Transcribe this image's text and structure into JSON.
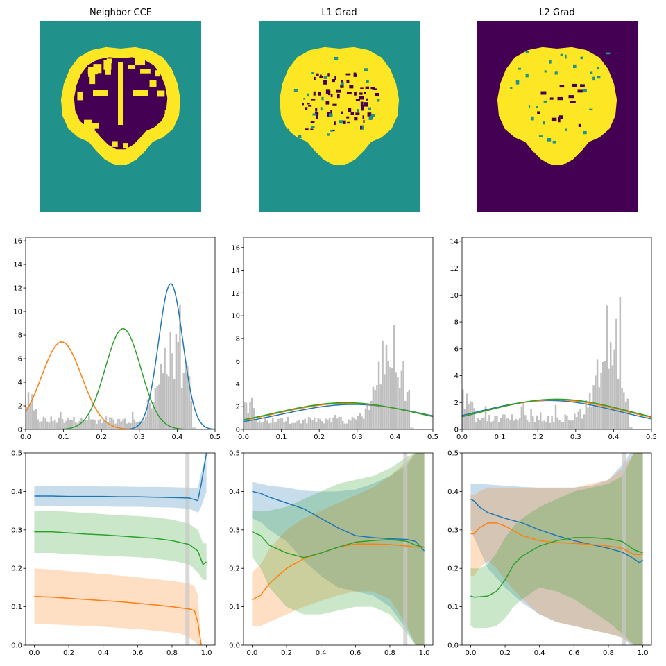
{
  "chart_data": [
    {
      "type": "image",
      "title": "Neighbor CCE",
      "colormap": {
        "background": "#21918c",
        "low": "#440154",
        "high": "#fde725"
      }
    },
    {
      "type": "image",
      "title": "L1 Grad",
      "colormap": {
        "background": "#21918c",
        "low": "#440154",
        "high": "#fde725"
      }
    },
    {
      "type": "image",
      "title": "L2 Grad",
      "colormap": {
        "background": "#440154",
        "mid": "#21918c",
        "high": "#fde725"
      }
    },
    {
      "type": "histogram",
      "xlim": [
        0,
        0.5
      ],
      "ylim": [
        0,
        16.3
      ],
      "xticks": [
        "0.0",
        "0.1",
        "0.2",
        "0.3",
        "0.4",
        "0.5"
      ],
      "yticks": [
        "0",
        "2",
        "4",
        "6",
        "8",
        "10",
        "12",
        "14",
        "16"
      ],
      "hist_color": "#bfbfbf",
      "curves": [
        {
          "color": "#1f77b4",
          "shape": "gaussian",
          "mu": 0.383,
          "sigma": 0.032,
          "peak": 12.35
        },
        {
          "color": "#ff7f0e",
          "shape": "gaussian",
          "mu": 0.095,
          "sigma": 0.053,
          "peak": 7.42
        },
        {
          "color": "#2ca02c",
          "shape": "gaussian",
          "mu": 0.257,
          "sigma": 0.047,
          "peak": 8.55
        }
      ]
    },
    {
      "type": "histogram",
      "xlim": [
        0,
        0.5
      ],
      "ylim": [
        0,
        16.9
      ],
      "xticks": [
        "0.0",
        "0.1",
        "0.2",
        "0.3",
        "0.4",
        "0.5"
      ],
      "yticks": [
        "0",
        "2",
        "4",
        "6",
        "8",
        "10",
        "12",
        "14",
        "16"
      ],
      "hist_color": "#bfbfbf",
      "curves": [
        {
          "color": "#1f77b4",
          "shape": "gaussian",
          "mu": 0.29,
          "sigma": 0.19,
          "peak": 2.2
        },
        {
          "color": "#ff7f0e",
          "shape": "gaussian",
          "mu": 0.275,
          "sigma": 0.19,
          "peak": 2.3
        },
        {
          "color": "#2ca02c",
          "shape": "gaussian",
          "mu": 0.27,
          "sigma": 0.19,
          "peak": 2.35
        }
      ]
    },
    {
      "type": "histogram",
      "xlim": [
        0,
        0.5
      ],
      "ylim": [
        0,
        14.3
      ],
      "xticks": [
        "0.0",
        "0.1",
        "0.2",
        "0.3",
        "0.4",
        "0.5"
      ],
      "yticks": [
        "0",
        "2",
        "4",
        "6",
        "8",
        "10",
        "12",
        "14"
      ],
      "hist_color": "#bfbfbf",
      "curves": [
        {
          "color": "#1f77b4",
          "shape": "gaussian",
          "mu": 0.23,
          "sigma": 0.19,
          "peak": 2.15
        },
        {
          "color": "#ff7f0e",
          "shape": "gaussian",
          "mu": 0.245,
          "sigma": 0.19,
          "peak": 2.2
        },
        {
          "color": "#2ca02c",
          "shape": "gaussian",
          "mu": 0.25,
          "sigma": 0.19,
          "peak": 2.25
        }
      ]
    },
    {
      "type": "line_band",
      "xlim": [
        -0.05,
        1.05
      ],
      "ylim": [
        0,
        0.5
      ],
      "xticks": [
        "0.0",
        "0.2",
        "0.4",
        "0.6",
        "0.8",
        "1.0"
      ],
      "yticks": [
        "0.0",
        "0.1",
        "0.2",
        "0.3",
        "0.4",
        "0.5"
      ],
      "vline_x": 0.89,
      "series": [
        {
          "color": "#1f77b4",
          "x": [
            0,
            0.1,
            0.2,
            0.3,
            0.4,
            0.5,
            0.6,
            0.7,
            0.8,
            0.9,
            0.95,
            0.97,
            1.0
          ],
          "mean": [
            0.388,
            0.388,
            0.387,
            0.387,
            0.387,
            0.386,
            0.386,
            0.385,
            0.384,
            0.383,
            0.376,
            0.42,
            0.5
          ],
          "lo": [
            0.362,
            0.362,
            0.361,
            0.361,
            0.361,
            0.36,
            0.36,
            0.359,
            0.358,
            0.355,
            0.345,
            0.36,
            0.4
          ],
          "hi": [
            0.415,
            0.415,
            0.414,
            0.414,
            0.413,
            0.413,
            0.412,
            0.412,
            0.411,
            0.41,
            0.408,
            0.45,
            0.5
          ]
        },
        {
          "color": "#ff7f0e",
          "x": [
            0,
            0.1,
            0.2,
            0.3,
            0.4,
            0.5,
            0.6,
            0.7,
            0.8,
            0.85,
            0.9,
            0.93,
            0.95,
            0.97
          ],
          "mean": [
            0.127,
            0.125,
            0.122,
            0.119,
            0.116,
            0.113,
            0.109,
            0.105,
            0.1,
            0.097,
            0.094,
            0.09,
            0.06,
            0.0
          ],
          "lo": [
            0.055,
            0.054,
            0.052,
            0.05,
            0.048,
            0.045,
            0.042,
            0.038,
            0.033,
            0.03,
            0.02,
            0.01,
            0.0,
            0.0
          ],
          "hi": [
            0.2,
            0.197,
            0.193,
            0.189,
            0.185,
            0.181,
            0.177,
            0.172,
            0.167,
            0.164,
            0.16,
            0.155,
            0.13,
            0.0
          ]
        },
        {
          "color": "#2ca02c",
          "x": [
            0,
            0.1,
            0.2,
            0.3,
            0.4,
            0.5,
            0.6,
            0.7,
            0.8,
            0.9,
            0.95,
            0.98,
            1.0
          ],
          "mean": [
            0.295,
            0.295,
            0.292,
            0.289,
            0.287,
            0.284,
            0.281,
            0.278,
            0.272,
            0.262,
            0.245,
            0.21,
            0.217
          ],
          "lo": [
            0.24,
            0.24,
            0.237,
            0.235,
            0.233,
            0.231,
            0.229,
            0.225,
            0.22,
            0.21,
            0.19,
            0.17,
            0.17
          ],
          "hi": [
            0.35,
            0.35,
            0.347,
            0.344,
            0.341,
            0.338,
            0.336,
            0.333,
            0.327,
            0.316,
            0.3,
            0.265,
            0.265
          ]
        }
      ]
    },
    {
      "type": "line_band",
      "xlim": [
        -0.05,
        1.05
      ],
      "ylim": [
        0,
        0.5
      ],
      "xticks": [
        "0.0",
        "0.2",
        "0.4",
        "0.6",
        "0.8",
        "1.0"
      ],
      "yticks": [
        "0.0",
        "0.1",
        "0.2",
        "0.3",
        "0.4",
        "0.5"
      ],
      "vline_x": 0.89,
      "series": [
        {
          "color": "#1f77b4",
          "x": [
            0,
            0.05,
            0.1,
            0.2,
            0.3,
            0.4,
            0.5,
            0.6,
            0.7,
            0.8,
            0.9,
            0.95,
            1.0
          ],
          "mean": [
            0.4,
            0.395,
            0.385,
            0.37,
            0.355,
            0.33,
            0.305,
            0.285,
            0.28,
            0.277,
            0.275,
            0.27,
            0.245
          ],
          "lo": [
            0.33,
            0.32,
            0.3,
            0.27,
            0.22,
            0.18,
            0.15,
            0.14,
            0.13,
            0.1,
            0.04,
            0.0,
            0.0
          ],
          "hi": [
            0.425,
            0.42,
            0.415,
            0.41,
            0.402,
            0.4,
            0.4,
            0.405,
            0.42,
            0.44,
            0.47,
            0.5,
            0.5
          ]
        },
        {
          "color": "#ff7f0e",
          "x": [
            0,
            0.05,
            0.1,
            0.2,
            0.3,
            0.4,
            0.5,
            0.6,
            0.7,
            0.8,
            0.9,
            0.95,
            1.0
          ],
          "mean": [
            0.118,
            0.13,
            0.16,
            0.2,
            0.225,
            0.24,
            0.255,
            0.263,
            0.263,
            0.262,
            0.258,
            0.255,
            0.255
          ],
          "lo": [
            0.05,
            0.05,
            0.06,
            0.08,
            0.1,
            0.115,
            0.13,
            0.14,
            0.14,
            0.12,
            0.05,
            0.0,
            0.0
          ],
          "hi": [
            0.19,
            0.21,
            0.25,
            0.3,
            0.33,
            0.35,
            0.37,
            0.39,
            0.41,
            0.44,
            0.48,
            0.5,
            0.5
          ]
        },
        {
          "color": "#2ca02c",
          "x": [
            0,
            0.05,
            0.1,
            0.2,
            0.3,
            0.4,
            0.5,
            0.6,
            0.7,
            0.8,
            0.9,
            0.95,
            1.0
          ],
          "mean": [
            0.295,
            0.285,
            0.26,
            0.24,
            0.228,
            0.24,
            0.255,
            0.268,
            0.272,
            0.275,
            0.27,
            0.26,
            0.255
          ],
          "lo": [
            0.23,
            0.2,
            0.15,
            0.1,
            0.08,
            0.08,
            0.09,
            0.1,
            0.1,
            0.08,
            0.03,
            0.0,
            0.0
          ],
          "hi": [
            0.35,
            0.35,
            0.35,
            0.36,
            0.38,
            0.4,
            0.42,
            0.43,
            0.44,
            0.46,
            0.49,
            0.5,
            0.5
          ]
        }
      ]
    },
    {
      "type": "line_band",
      "xlim": [
        -0.05,
        1.05
      ],
      "ylim": [
        0,
        0.5
      ],
      "xticks": [
        "0.0",
        "0.2",
        "0.4",
        "0.6",
        "0.8",
        "1.0"
      ],
      "yticks": [
        "0.0",
        "0.1",
        "0.2",
        "0.3",
        "0.4",
        "0.5"
      ],
      "vline_x": 0.89,
      "series": [
        {
          "color": "#1f77b4",
          "x": [
            0,
            0.02,
            0.05,
            0.1,
            0.2,
            0.3,
            0.4,
            0.5,
            0.6,
            0.7,
            0.8,
            0.88,
            0.93,
            0.98,
            1.0
          ],
          "mean": [
            0.38,
            0.375,
            0.36,
            0.345,
            0.33,
            0.318,
            0.3,
            0.285,
            0.272,
            0.262,
            0.252,
            0.242,
            0.23,
            0.215,
            0.222
          ],
          "lo": [
            0.3,
            0.28,
            0.25,
            0.2,
            0.15,
            0.11,
            0.08,
            0.06,
            0.05,
            0.04,
            0.03,
            0.02,
            0.0,
            0.0,
            0.0
          ],
          "hi": [
            0.42,
            0.42,
            0.42,
            0.418,
            0.415,
            0.412,
            0.41,
            0.41,
            0.41,
            0.415,
            0.43,
            0.47,
            0.5,
            0.5,
            0.5
          ]
        },
        {
          "color": "#ff7f0e",
          "x": [
            0,
            0.02,
            0.05,
            0.1,
            0.15,
            0.2,
            0.3,
            0.4,
            0.5,
            0.6,
            0.7,
            0.8,
            0.88,
            0.95,
            1.0
          ],
          "mean": [
            0.29,
            0.29,
            0.305,
            0.318,
            0.318,
            0.31,
            0.285,
            0.272,
            0.267,
            0.265,
            0.262,
            0.258,
            0.252,
            0.236,
            0.236
          ],
          "lo": [
            0.18,
            0.18,
            0.2,
            0.22,
            0.2,
            0.17,
            0.12,
            0.08,
            0.06,
            0.05,
            0.04,
            0.03,
            0.02,
            0.0,
            0.0
          ],
          "hi": [
            0.39,
            0.39,
            0.4,
            0.41,
            0.41,
            0.41,
            0.41,
            0.41,
            0.41,
            0.41,
            0.42,
            0.43,
            0.46,
            0.5,
            0.5
          ]
        },
        {
          "color": "#2ca02c",
          "x": [
            0,
            0.02,
            0.05,
            0.1,
            0.15,
            0.2,
            0.25,
            0.3,
            0.4,
            0.5,
            0.6,
            0.7,
            0.8,
            0.88,
            0.95,
            1.0
          ],
          "mean": [
            0.128,
            0.125,
            0.126,
            0.128,
            0.14,
            0.17,
            0.21,
            0.232,
            0.258,
            0.272,
            0.28,
            0.28,
            0.277,
            0.27,
            0.248,
            0.24
          ],
          "lo": [
            0.05,
            0.045,
            0.045,
            0.045,
            0.05,
            0.07,
            0.1,
            0.12,
            0.15,
            0.14,
            0.12,
            0.09,
            0.06,
            0.03,
            0.0,
            0.0
          ],
          "hi": [
            0.2,
            0.2,
            0.2,
            0.21,
            0.24,
            0.28,
            0.31,
            0.33,
            0.36,
            0.38,
            0.4,
            0.41,
            0.42,
            0.44,
            0.5,
            0.5
          ]
        }
      ]
    }
  ]
}
